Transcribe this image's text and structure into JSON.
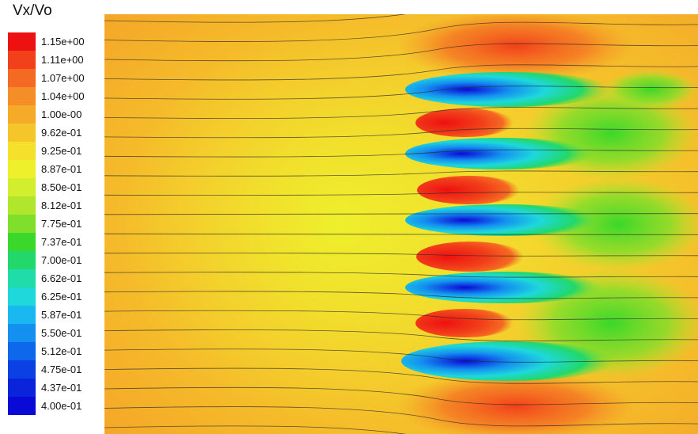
{
  "chart_data": {
    "type": "heatmap",
    "title": "Vx/Vo",
    "colorbar": {
      "min": 0.4,
      "max": 1.15,
      "tick_labels": [
        "1.15e+00",
        "1.11e+00",
        "1.07e+00",
        "1.04e+00",
        "1.00e-00",
        "9.62e-01",
        "9.25e-01",
        "8.87e-01",
        "8.50e-01",
        "8.12e-01",
        "7.75e-01",
        "7.37e-01",
        "7.00e-01",
        "6.62e-01",
        "6.25e-01",
        "5.87e-01",
        "5.50e-01",
        "5.12e-01",
        "4.75e-01",
        "4.37e-01",
        "4.00e-01"
      ],
      "colors": [
        "#ee1111",
        "#f2401a",
        "#f56a22",
        "#f58e26",
        "#f5ab28",
        "#f5c62a",
        "#f5e02c",
        "#eef02c",
        "#d2ee2c",
        "#b0e62c",
        "#80df2a",
        "#3ad82a",
        "#22d86a",
        "#20dca8",
        "#1ed8dc",
        "#1ab8f0",
        "#1490f0",
        "#0e68ec",
        "#0a40e4",
        "#0a24dc",
        "#0a0ad6"
      ]
    }
  }
}
